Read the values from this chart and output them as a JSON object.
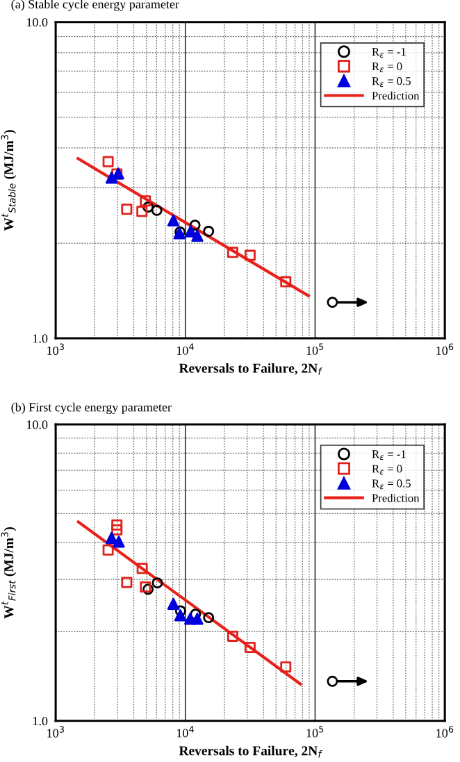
{
  "chart_data": [
    {
      "type": "scatter",
      "title": "(a) Stable cycle energy parameter",
      "xlabel": "Reversals to Failure, 2N$_{f}$",
      "ylabel": "W$^{t}$$_{Stable}$ (MJ/m$^{3}$)",
      "log": "xy",
      "xlim": [
        1000,
        1000000
      ],
      "ylim": [
        1.0,
        10.0
      ],
      "xticks": [
        {
          "value": 1000,
          "label": "10$^{3}$"
        },
        {
          "value": 2000,
          "label": null
        },
        {
          "value": 3000,
          "label": null
        },
        {
          "value": 4000,
          "label": null
        },
        {
          "value": 5000,
          "label": null
        },
        {
          "value": 6000,
          "label": null
        },
        {
          "value": 7000,
          "label": null
        },
        {
          "value": 8000,
          "label": null
        },
        {
          "value": 9000,
          "label": null
        },
        {
          "value": 10000,
          "label": "10$^{4}$"
        },
        {
          "value": 20000,
          "label": null
        },
        {
          "value": 30000,
          "label": null
        },
        {
          "value": 40000,
          "label": null
        },
        {
          "value": 50000,
          "label": null
        },
        {
          "value": 60000,
          "label": null
        },
        {
          "value": 70000,
          "label": null
        },
        {
          "value": 80000,
          "label": null
        },
        {
          "value": 90000,
          "label": null
        },
        {
          "value": 100000,
          "label": "10$^{5}$"
        },
        {
          "value": 200000,
          "label": null
        },
        {
          "value": 300000,
          "label": null
        },
        {
          "value": 400000,
          "label": null
        },
        {
          "value": 500000,
          "label": null
        },
        {
          "value": 600000,
          "label": null
        },
        {
          "value": 700000,
          "label": null
        },
        {
          "value": 800000,
          "label": null
        },
        {
          "value": 900000,
          "label": null
        },
        {
          "value": 1000000,
          "label": "10$^{6}$"
        }
      ],
      "yticks": [
        {
          "value": 1.0,
          "label": "1.0"
        },
        {
          "value": 2,
          "label": null
        },
        {
          "value": 3,
          "label": null
        },
        {
          "value": 4,
          "label": null
        },
        {
          "value": 5,
          "label": null
        },
        {
          "value": 6,
          "label": null
        },
        {
          "value": 7,
          "label": null
        },
        {
          "value": 8,
          "label": null
        },
        {
          "value": 9,
          "label": null
        },
        {
          "value": 10.0,
          "label": "10.0"
        }
      ],
      "grid": true,
      "legend": "top right",
      "series": [
        {
          "name": "R$_{ε}$ = -1",
          "marker": "circle",
          "color": "#000000",
          "x": [
            5158,
            6026,
            9100,
            11860,
            15100
          ],
          "values": [
            2.6,
            2.54,
            2.17,
            2.28,
            2.18
          ]
        },
        {
          "name": "R$_{ε}$ = 0",
          "marker": "square",
          "color": "#e0201b",
          "x": [
            2538,
            2965,
            3532,
            4624,
            4920,
            23170,
            31530,
            59430
          ],
          "values": [
            3.62,
            3.31,
            2.56,
            2.52,
            2.72,
            1.87,
            1.83,
            1.51
          ]
        },
        {
          "name": "R$_{ε}$ = 0.5",
          "marker": "triangle",
          "color": "#0000dd",
          "x": [
            2698,
            3037,
            8082,
            9000,
            10990,
            12360
          ],
          "values": [
            3.22,
            3.32,
            2.36,
            2.15,
            2.18,
            2.11
          ]
        },
        {
          "name": "Prediction",
          "type": "line",
          "marker": "none",
          "color": "#e8211b",
          "x": [
            1488,
            88860
          ],
          "values": [
            3.7,
            1.363
          ]
        },
        {
          "marker": "circle",
          "color": "#000000",
          "x": [
            136000
          ],
          "values": [
            1.3
          ]
        }
      ]
    },
    {
      "type": "scatter",
      "title": "(b) First cycle energy parameter",
      "xlabel": "Reversals to Failure, 2N$_{f}$",
      "ylabel": "W$^{t}$$_{First}$ (MJ/m$^{3}$)",
      "log": "xy",
      "xlim": [
        1000,
        1000000
      ],
      "ylim": [
        1.0,
        10.0
      ],
      "xticks": [
        {
          "value": 1000,
          "label": "10$^{3}$"
        },
        {
          "value": 2000,
          "label": null
        },
        {
          "value": 3000,
          "label": null
        },
        {
          "value": 4000,
          "label": null
        },
        {
          "value": 5000,
          "label": null
        },
        {
          "value": 6000,
          "label": null
        },
        {
          "value": 7000,
          "label": null
        },
        {
          "value": 8000,
          "label": null
        },
        {
          "value": 9000,
          "label": null
        },
        {
          "value": 10000,
          "label": "10$^{4}$"
        },
        {
          "value": 20000,
          "label": null
        },
        {
          "value": 30000,
          "label": null
        },
        {
          "value": 40000,
          "label": null
        },
        {
          "value": 50000,
          "label": null
        },
        {
          "value": 60000,
          "label": null
        },
        {
          "value": 70000,
          "label": null
        },
        {
          "value": 80000,
          "label": null
        },
        {
          "value": 90000,
          "label": null
        },
        {
          "value": 100000,
          "label": "10$^{5}$"
        },
        {
          "value": 200000,
          "label": null
        },
        {
          "value": 300000,
          "label": null
        },
        {
          "value": 400000,
          "label": null
        },
        {
          "value": 500000,
          "label": null
        },
        {
          "value": 600000,
          "label": null
        },
        {
          "value": 700000,
          "label": null
        },
        {
          "value": 800000,
          "label": null
        },
        {
          "value": 900000,
          "label": null
        },
        {
          "value": 1000000,
          "label": "10$^{6}$"
        }
      ],
      "yticks": [
        {
          "value": 1.0,
          "label": "1.0"
        },
        {
          "value": 2,
          "label": null
        },
        {
          "value": 3,
          "label": null
        },
        {
          "value": 4,
          "label": null
        },
        {
          "value": 5,
          "label": null
        },
        {
          "value": 6,
          "label": null
        },
        {
          "value": 7,
          "label": null
        },
        {
          "value": 8,
          "label": null
        },
        {
          "value": 9,
          "label": null
        },
        {
          "value": 10.0,
          "label": "10.0"
        }
      ],
      "grid": true,
      "legend": "top right",
      "series": [
        {
          "name": "R$_{ε}$ = -1",
          "marker": "circle",
          "color": "#000000",
          "x": [
            5158,
            6085,
            9180,
            11970,
            15100
          ],
          "values": [
            2.78,
            2.92,
            2.35,
            2.29,
            2.23
          ]
        },
        {
          "name": "R$_{ε}$ = 0",
          "marker": "square",
          "color": "#e0201b",
          "x": [
            2965,
            2965,
            2538,
            4645,
            3532,
            4920,
            23170,
            31530,
            59430
          ],
          "values": [
            4.58,
            4.41,
            3.77,
            3.27,
            2.93,
            2.83,
            1.93,
            1.77,
            1.52
          ]
        },
        {
          "name": "R$_{ε}$ = 0.5",
          "marker": "triangle",
          "color": "#0000dd",
          "x": [
            2698,
            3067,
            8082,
            9140,
            10890,
            12360
          ],
          "values": [
            4.14,
            4.02,
            2.48,
            2.27,
            2.21,
            2.21
          ]
        },
        {
          "name": "Prediction",
          "type": "line",
          "marker": "none",
          "color": "#e8211b",
          "x": [
            1495,
            77100
          ],
          "values": [
            4.69,
            1.331
          ]
        },
        {
          "marker": "circle",
          "color": "#000000",
          "x": [
            136000
          ],
          "values": [
            1.36
          ]
        }
      ]
    }
  ]
}
